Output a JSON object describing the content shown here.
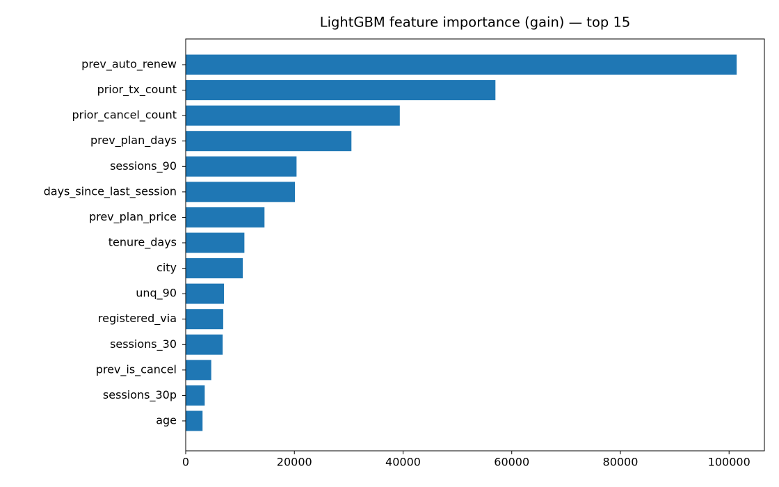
{
  "chart_data": {
    "type": "barh",
    "title": "LightGBM feature importance (gain) — top 15",
    "categories": [
      "prev_auto_renew",
      "prior_tx_count",
      "prior_cancel_count",
      "prev_plan_days",
      "sessions_90",
      "days_since_last_session",
      "prev_plan_price",
      "tenure_days",
      "city",
      "unq_90",
      "registered_via",
      "sessions_30",
      "prev_is_cancel",
      "sessions_30p",
      "age"
    ],
    "values": [
      101400,
      57000,
      39400,
      30500,
      20400,
      20100,
      14500,
      10800,
      10500,
      7050,
      6900,
      6800,
      4700,
      3500,
      3100
    ],
    "color": "#1f77b4",
    "xlim": [
      0,
      106500
    ],
    "xticks": [
      0,
      20000,
      40000,
      60000,
      80000,
      100000
    ]
  }
}
